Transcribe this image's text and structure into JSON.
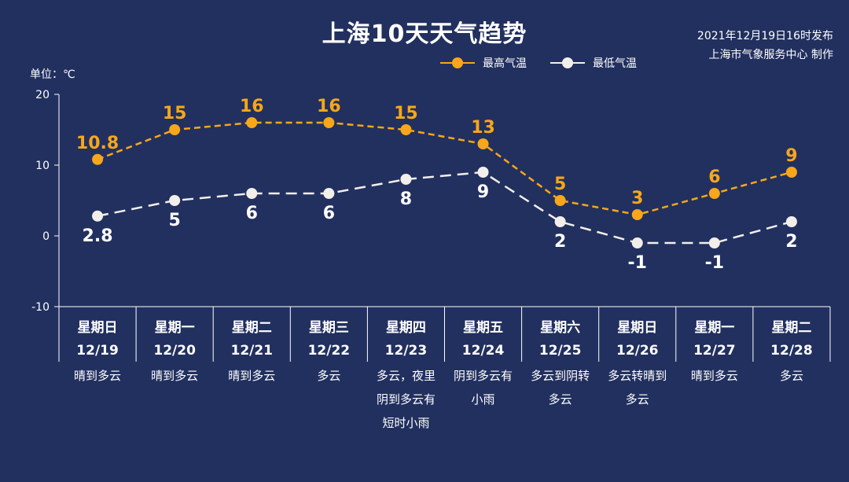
{
  "header": {
    "title": "上海10天天气趋势",
    "publish_time": "2021年12月19日16时发布",
    "publisher": "上海市气象服务中心 制作",
    "unit_label": "单位：℃"
  },
  "legend": {
    "high_label": "最高气温",
    "low_label": "最低气温"
  },
  "colors": {
    "background": "#22305f",
    "high": "#f7a719",
    "low": "#f2efeb",
    "text": "#ffffff",
    "axis": "#ffffff"
  },
  "chart_data": {
    "type": "line",
    "title": "上海10天天气趋势",
    "ylabel": "单位：℃",
    "ylim": [
      -10,
      20
    ],
    "yticks": [
      -10,
      0,
      10,
      20
    ],
    "categories": [
      {
        "weekday": "星期日",
        "date": "12/19",
        "weather": [
          "晴到多云"
        ]
      },
      {
        "weekday": "星期一",
        "date": "12/20",
        "weather": [
          "晴到多云"
        ]
      },
      {
        "weekday": "星期二",
        "date": "12/21",
        "weather": [
          "晴到多云"
        ]
      },
      {
        "weekday": "星期三",
        "date": "12/22",
        "weather": [
          "多云"
        ]
      },
      {
        "weekday": "星期四",
        "date": "12/23",
        "weather": [
          "多云，夜里",
          "阴到多云有",
          "短时小雨"
        ]
      },
      {
        "weekday": "星期五",
        "date": "12/24",
        "weather": [
          "阴到多云有",
          "小雨"
        ]
      },
      {
        "weekday": "星期六",
        "date": "12/25",
        "weather": [
          "多云到阴转",
          "多云"
        ]
      },
      {
        "weekday": "星期日",
        "date": "12/26",
        "weather": [
          "多云转晴到",
          "多云"
        ]
      },
      {
        "weekday": "星期一",
        "date": "12/27",
        "weather": [
          "晴到多云"
        ]
      },
      {
        "weekday": "星期二",
        "date": "12/28",
        "weather": [
          "多云"
        ]
      }
    ],
    "series": [
      {
        "name": "最高气温",
        "values": [
          10.8,
          15,
          16,
          16,
          15,
          13,
          5,
          3,
          6,
          9
        ],
        "labels": [
          "10.8",
          "15",
          "16",
          "16",
          "15",
          "13",
          "5",
          "3",
          "6",
          "9"
        ],
        "label_position": "above"
      },
      {
        "name": "最低气温",
        "values": [
          2.8,
          5,
          6,
          6,
          8,
          9,
          2,
          -1,
          -1,
          2
        ],
        "labels": [
          "2.8",
          "5",
          "6",
          "6",
          "8",
          "9",
          "2",
          "-1",
          "-1",
          "2"
        ],
        "label_position": "below"
      }
    ],
    "grid": false,
    "legend_position": "top-right"
  }
}
